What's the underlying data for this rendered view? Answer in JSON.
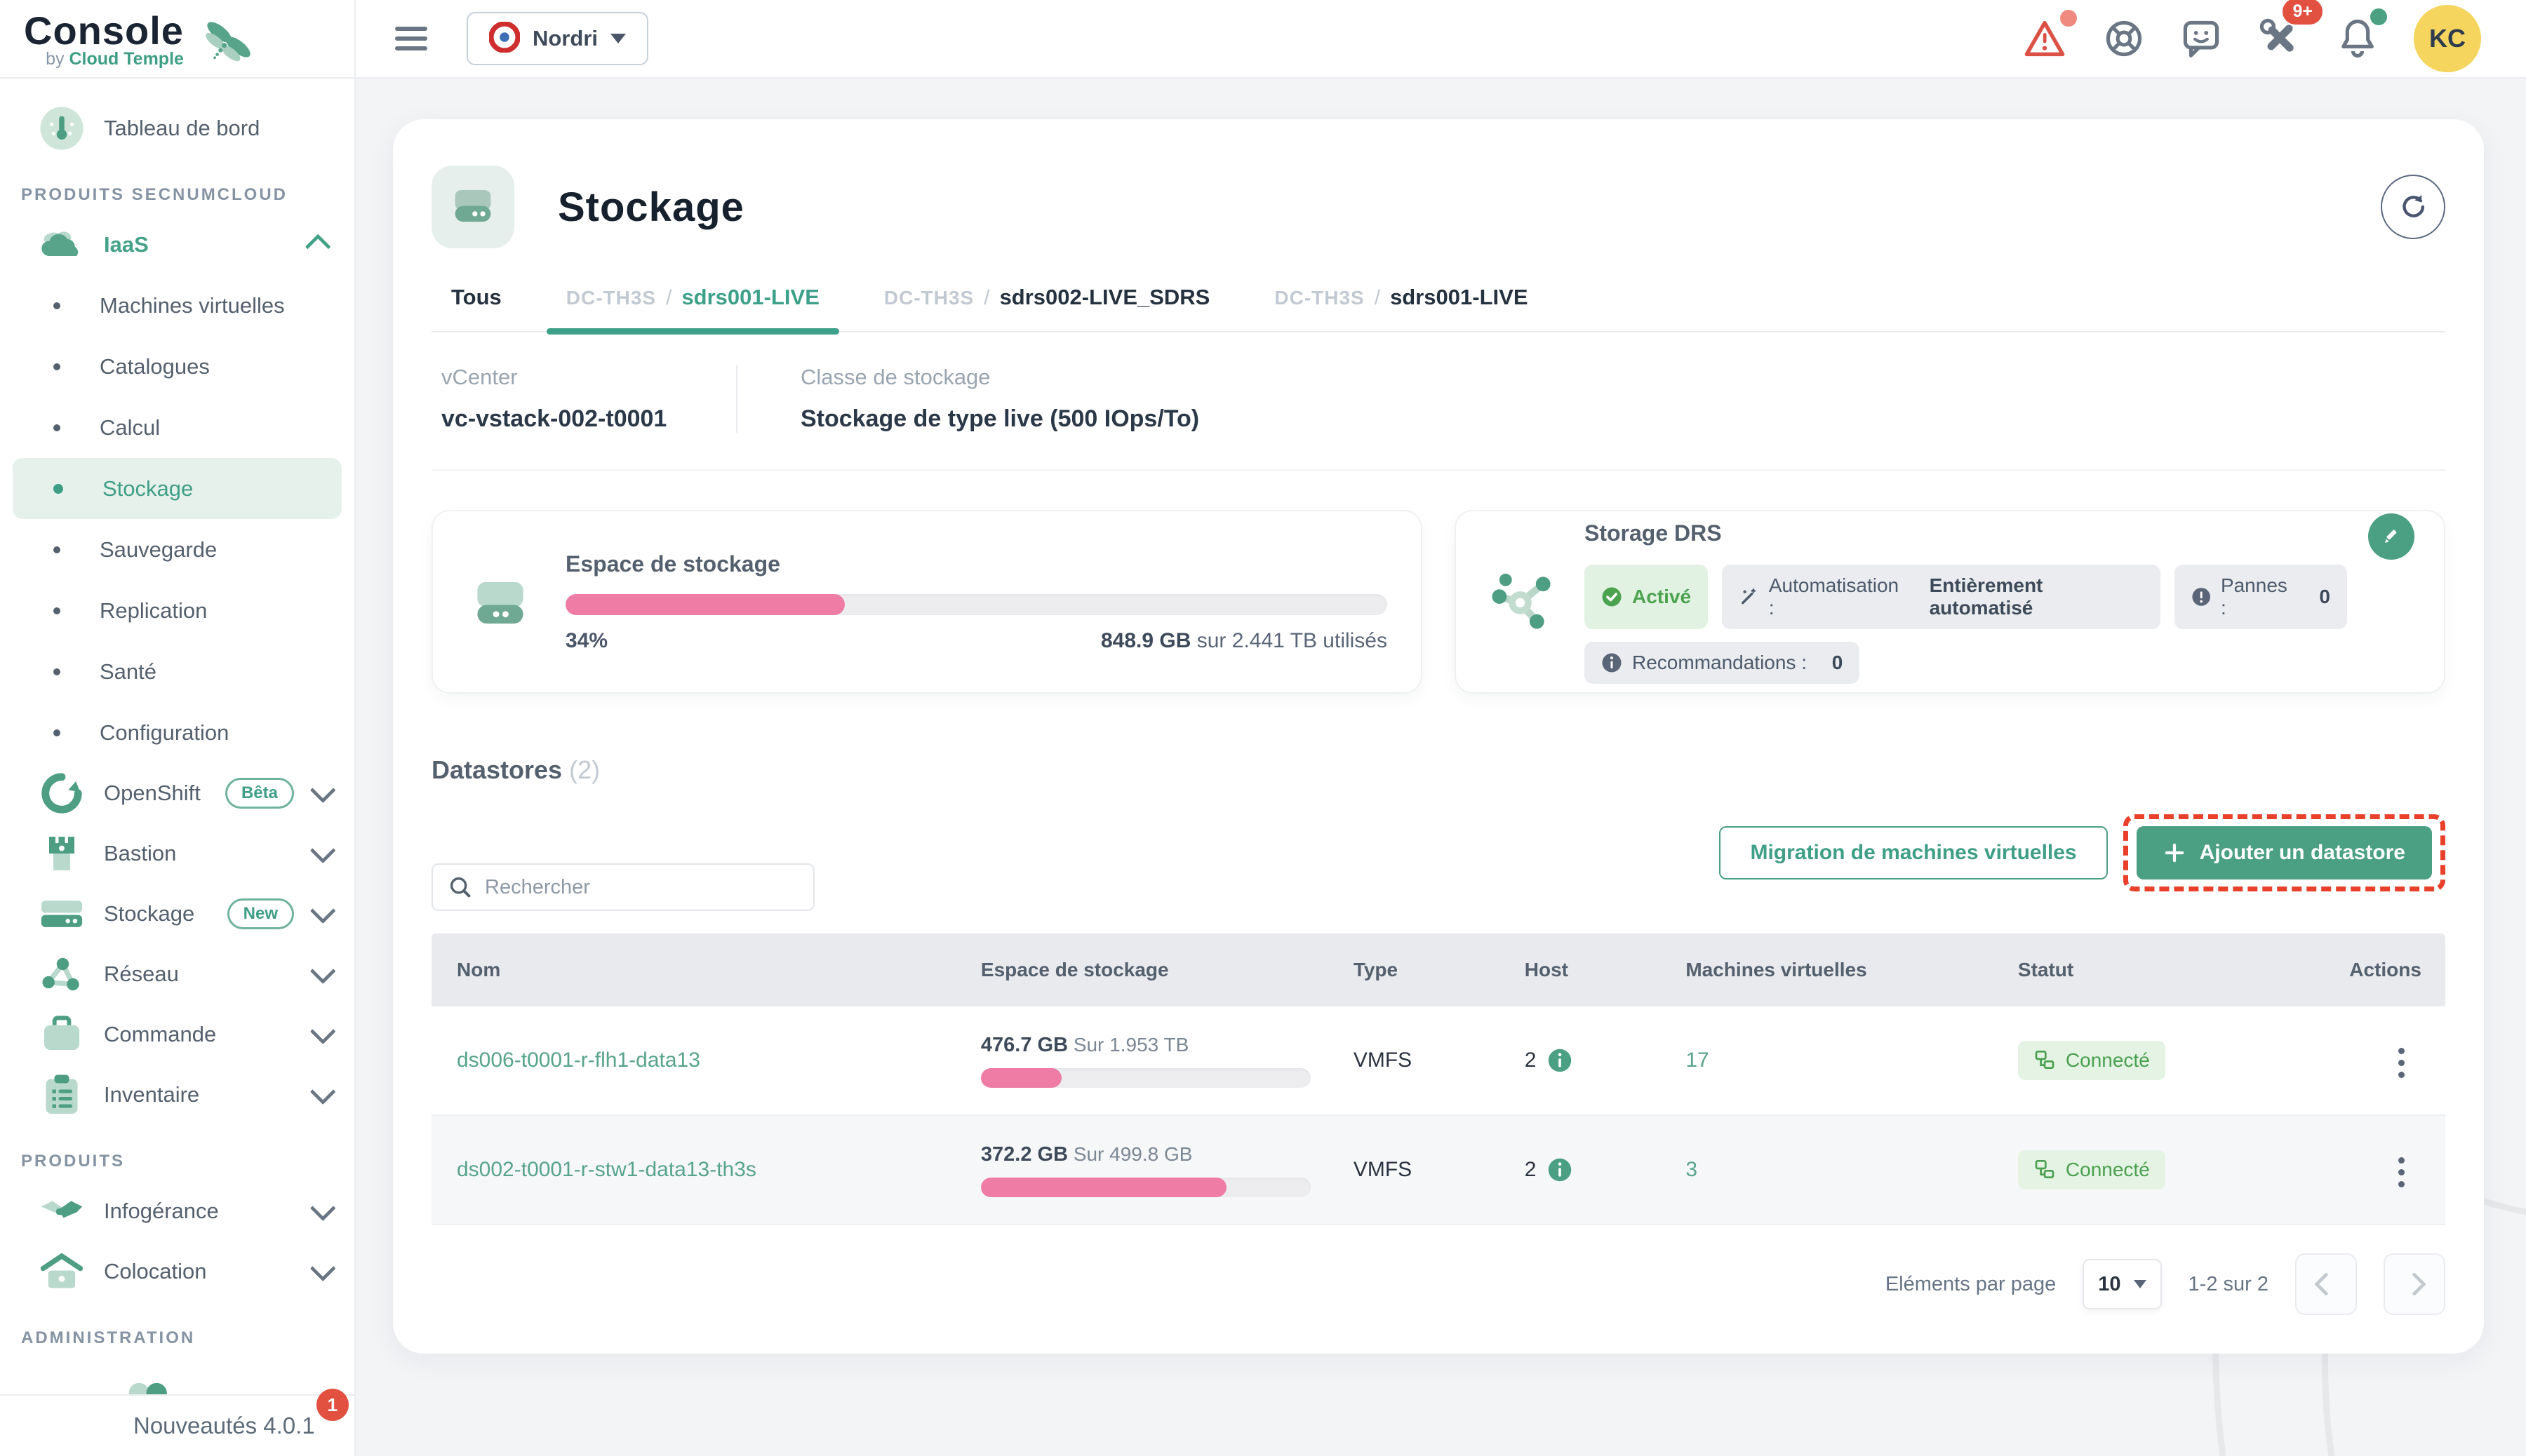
{
  "colors": {
    "accent_green": "#4ba083",
    "link_green": "#57a48b",
    "active_tab_green": "#3da089",
    "pink_progress": "#ee7ca4",
    "red_alert": "#e2503f",
    "avatar_yellow": "#f6d55f",
    "badge_green_bg": "#e2f2e2",
    "badge_green_text": "#4ba34f",
    "gray_badge_bg": "#eaecef",
    "dark_navy": "#17212e",
    "slate": "#55606e"
  },
  "brand": {
    "name": "Console",
    "byline_prefix": "by",
    "byline_name": "Cloud Temple"
  },
  "topbar": {
    "org_label": "Nordri",
    "tools_badge": "9+",
    "avatar_initials": "KC"
  },
  "sidebar": {
    "dashboard_label": "Tableau de bord",
    "section_products_snc": "PRODUITS SECNUMCLOUD",
    "iaas_label": "IaaS",
    "iaas_children": [
      "Machines virtuelles",
      "Catalogues",
      "Calcul",
      "Stockage",
      "Sauvegarde",
      "Replication",
      "Santé",
      "Configuration"
    ],
    "items": [
      {
        "label": "OpenShift",
        "badge": "Bêta"
      },
      {
        "label": "Bastion"
      },
      {
        "label": "Stockage",
        "badge": "New"
      },
      {
        "label": "Réseau"
      },
      {
        "label": "Commande"
      },
      {
        "label": "Inventaire"
      }
    ],
    "section_products": "PRODUITS",
    "products_items": [
      {
        "label": "Infogérance"
      },
      {
        "label": "Colocation"
      }
    ],
    "section_admin": "ADMINISTRATION",
    "whatsnew_label": "Nouveautés 4.0.1",
    "whatsnew_badge": "1"
  },
  "page": {
    "title": "Stockage",
    "tabs_sep": "/",
    "tabs": [
      {
        "label": "Tous"
      },
      {
        "prefix": "DC-TH3S",
        "name": "sdrs001-LIVE"
      },
      {
        "prefix": "DC-TH3S",
        "name": "sdrs002-LIVE_SDRS"
      },
      {
        "prefix": "DC-TH3S",
        "name": "sdrs001-LIVE"
      }
    ],
    "info": {
      "vcenter_label": "vCenter",
      "vcenter_value": "vc-vstack-002-t0001",
      "class_label": "Classe de stockage",
      "class_value": "Stockage de type live (500 IOps/To)"
    }
  },
  "storage_card": {
    "title": "Espace de stockage",
    "percent_label": "34%",
    "percent_value": 34,
    "used_bold": "848.9 GB",
    "used_rest": "sur 2.441 TB utilisés"
  },
  "drs_card": {
    "title": "Storage DRS",
    "status_label": "Activé",
    "automation_label": "Automatisation :",
    "automation_value": "Entièrement automatisé",
    "pannes_label": "Pannes :",
    "pannes_value": "0",
    "reco_label": "Recommandations :",
    "reco_value": "0"
  },
  "datastores": {
    "title": "Datastores",
    "count": "(2)",
    "search_placeholder": "Rechercher",
    "migrate_button": "Migration de machines virtuelles",
    "add_button": "Ajouter un datastore",
    "table": {
      "headers": [
        "Nom",
        "Espace de stockage",
        "Type",
        "Host",
        "Machines virtuelles",
        "Statut",
        "Actions"
      ],
      "rows": [
        {
          "name": "ds006-t0001-r-flh1-data13",
          "used": "476.7 GB",
          "capacity": "Sur 1.953 TB",
          "percent_value": 24.4,
          "type": "VMFS",
          "host": "2",
          "vms": "17",
          "status": "Connecté"
        },
        {
          "name": "ds002-t0001-r-stw1-data13-th3s",
          "used": "372.2 GB",
          "capacity": "Sur 499.8 GB",
          "percent_value": 74.5,
          "type": "VMFS",
          "host": "2",
          "vms": "3",
          "status": "Connecté"
        }
      ]
    },
    "pagination": {
      "label": "Eléments par page",
      "page_size": "10",
      "range": "1-2 sur 2"
    }
  }
}
